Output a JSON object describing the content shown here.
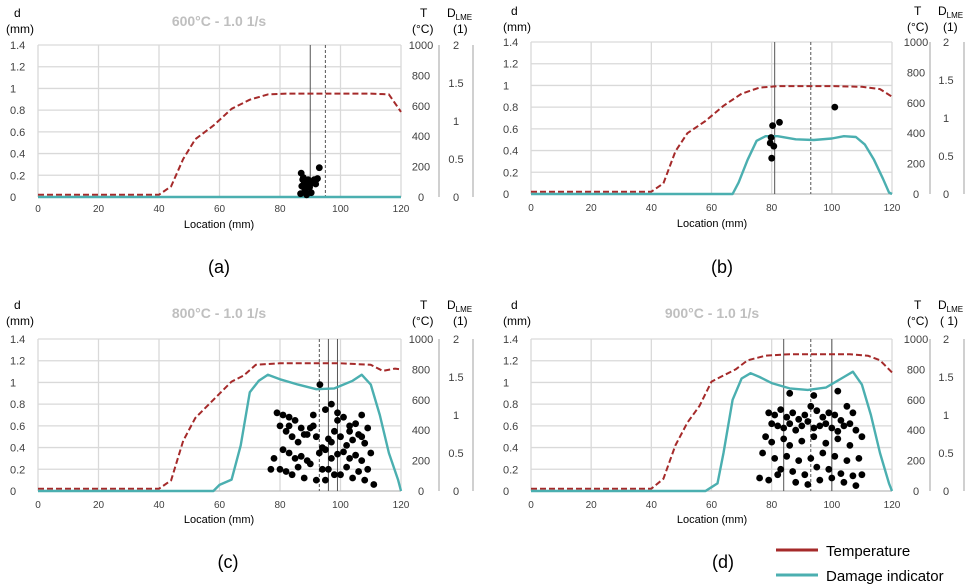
{
  "colors": {
    "temperature": "#A52A2A",
    "damage": "#4BAFB0",
    "grid": "#D9D9D9",
    "axis_text": "#404040",
    "title": "#BFBFBF",
    "points": "#000000"
  },
  "legend": {
    "temperature_label": "Temperature",
    "damage_label": "Damage indicator"
  },
  "chart_data": [
    {
      "type": "line+scatter",
      "panel": "a",
      "caption": "(a)",
      "title": "600°C - 1.0 1/s",
      "xlabel": "Location (mm)",
      "x_ticks": [
        "0",
        "20",
        "40",
        "60",
        "80",
        "100",
        "120"
      ],
      "xlim": [
        0,
        120
      ],
      "y_left": {
        "label_top": "d",
        "label_unit": "(mm)",
        "ticks": [
          "0",
          "0.2",
          "0.4",
          "0.6",
          "0.8",
          "1",
          "1.2",
          "1.4"
        ],
        "lim": [
          0,
          1.4
        ]
      },
      "y_temp": {
        "label_top": "T",
        "label_unit": "(°C)",
        "ticks": [
          "0",
          "200",
          "400",
          "600",
          "800",
          "1000"
        ],
        "lim": [
          0,
          1000
        ]
      },
      "y_dlme": {
        "label_top": "D",
        "label_sub": "LME",
        "label_unit": "(1)",
        "ticks": [
          "0",
          "0.5",
          "1",
          "1.5",
          "2"
        ],
        "lim": [
          0,
          2
        ]
      },
      "vlines": {
        "solid": [
          90
        ],
        "dashed": [
          95
        ]
      },
      "series": [
        {
          "name": "Temperature",
          "axis": "T",
          "style": "dashed",
          "x": [
            0,
            40,
            44,
            48,
            52,
            58,
            64,
            70,
            76,
            82,
            90,
            100,
            110,
            116,
            120
          ],
          "y": [
            15,
            15,
            70,
            250,
            380,
            470,
            580,
            640,
            675,
            680,
            680,
            680,
            680,
            675,
            560
          ]
        },
        {
          "name": "Damage indicator",
          "axis": "D",
          "style": "solid",
          "x": [
            0,
            120
          ],
          "y": [
            0,
            0
          ]
        }
      ],
      "points": {
        "axis": "d",
        "x": [
          86.8,
          87.2,
          87.7,
          88.0,
          88.4,
          88.9,
          89.3,
          89.8,
          90.2,
          90.8,
          91.3,
          91.8,
          92.4,
          87.0,
          87.5,
          88.2,
          88.8,
          89.5,
          90.3,
          91.0,
          92.0,
          93.0
        ],
        "y": [
          0.03,
          0.1,
          0.18,
          0.14,
          0.05,
          0.12,
          0.16,
          0.09,
          0.14,
          0.13,
          0.16,
          0.12,
          0.17,
          0.22,
          0.16,
          0.07,
          0.02,
          0.1,
          0.04,
          0.14,
          0.16,
          0.27
        ]
      }
    },
    {
      "type": "line+scatter",
      "panel": "b",
      "caption": "(b)",
      "title": "",
      "xlabel": "Location (mm)",
      "x_ticks": [
        "0",
        "20",
        "40",
        "60",
        "80",
        "100",
        "120"
      ],
      "xlim": [
        0,
        120
      ],
      "y_left": {
        "label_top": "d",
        "label_unit": "(mm)",
        "ticks": [
          "0",
          "0.2",
          "0.4",
          "0.6",
          "0.8",
          "1",
          "1.2",
          "1.4"
        ],
        "lim": [
          0,
          1.4
        ]
      },
      "y_temp": {
        "label_top": "T",
        "label_unit": "(°C)",
        "ticks": [
          "0",
          "200",
          "400",
          "600",
          "800",
          "1000"
        ],
        "lim": [
          0,
          1000
        ]
      },
      "y_dlme": {
        "label_top": "D",
        "label_sub": "LME",
        "label_unit": "(1)",
        "ticks": [
          "0",
          "0.5",
          "1",
          "1.5",
          "2"
        ],
        "lim": [
          0,
          2
        ]
      },
      "vlines": {
        "solid": [
          81
        ],
        "dashed": [
          93
        ]
      },
      "series": [
        {
          "name": "Temperature",
          "axis": "T",
          "style": "dashed",
          "x": [
            0,
            40,
            44,
            48,
            52,
            58,
            64,
            70,
            76,
            82,
            90,
            100,
            110,
            116,
            120
          ],
          "y": [
            15,
            15,
            70,
            280,
            400,
            480,
            580,
            660,
            700,
            710,
            710,
            710,
            705,
            690,
            640
          ]
        },
        {
          "name": "Damage indicator",
          "axis": "D",
          "style": "solid",
          "x": [
            0,
            67,
            69,
            72,
            75,
            78,
            82,
            88,
            94,
            100,
            104,
            108,
            111,
            114,
            117,
            119,
            120
          ],
          "y": [
            0,
            0,
            0.15,
            0.45,
            0.7,
            0.76,
            0.76,
            0.72,
            0.71,
            0.73,
            0.76,
            0.75,
            0.65,
            0.45,
            0.2,
            0.02,
            0
          ]
        }
      ],
      "points": {
        "axis": "d",
        "x": [
          79.5,
          79.8,
          80.0,
          80.3,
          80.7,
          82.6,
          101.0
        ],
        "y": [
          0.47,
          0.52,
          0.33,
          0.63,
          0.44,
          0.66,
          0.8
        ]
      }
    },
    {
      "type": "line+scatter",
      "panel": "c",
      "caption": "(c)",
      "title": "800°C - 1.0 1/s",
      "xlabel": "Location (mm)",
      "x_ticks": [
        "0",
        "20",
        "40",
        "60",
        "80",
        "100",
        "120"
      ],
      "xlim": [
        0,
        120
      ],
      "y_left": {
        "label_top": "d",
        "label_unit": "(mm)",
        "ticks": [
          "0",
          "0.2",
          "0.4",
          "0.6",
          "0.8",
          "1",
          "1.2",
          "1.4"
        ],
        "lim": [
          0,
          1.4
        ]
      },
      "y_temp": {
        "label_top": "T",
        "label_unit": "(°C)",
        "ticks": [
          "0",
          "200",
          "400",
          "600",
          "800",
          "1000"
        ],
        "lim": [
          0,
          1000
        ]
      },
      "y_dlme": {
        "label_top": "D",
        "label_sub": "LME",
        "label_unit": "(1)",
        "ticks": [
          "0",
          "0.5",
          "1",
          "1.5",
          "2"
        ],
        "lim": [
          0,
          2
        ]
      },
      "vlines": {
        "solid": [
          96,
          99
        ],
        "dashed": [
          93
        ]
      },
      "series": [
        {
          "name": "Temperature",
          "axis": "T",
          "style": "dashed",
          "x": [
            0,
            40,
            44,
            48,
            52,
            58,
            64,
            68,
            72,
            80,
            90,
            100,
            110,
            114,
            118,
            120
          ],
          "y": [
            15,
            15,
            70,
            330,
            480,
            600,
            720,
            760,
            830,
            840,
            840,
            840,
            830,
            790,
            805,
            800
          ]
        },
        {
          "name": "Damage indicator",
          "axis": "D",
          "style": "solid",
          "x": [
            0,
            58,
            60,
            64,
            67,
            70,
            73,
            76,
            80,
            86,
            92,
            98,
            104,
            107,
            110,
            113,
            116,
            119,
            120
          ],
          "y": [
            0,
            0,
            0.08,
            0.15,
            0.6,
            1.3,
            1.45,
            1.53,
            1.47,
            1.4,
            1.34,
            1.35,
            1.45,
            1.53,
            1.4,
            1.0,
            0.5,
            0.15,
            0
          ]
        }
      ],
      "points": {
        "axis": "d",
        "x": [
          93.2,
          79,
          81,
          83,
          85,
          87,
          89,
          91,
          95,
          97,
          99,
          101,
          103,
          105,
          107,
          109,
          80,
          82,
          84,
          86,
          88,
          90,
          92,
          94,
          96,
          98,
          100,
          102,
          104,
          106,
          108,
          81,
          83,
          85,
          87,
          89,
          93,
          95,
          97,
          99,
          101,
          103,
          105,
          107,
          110,
          78,
          80,
          82,
          86,
          90,
          94,
          98,
          102,
          106,
          84,
          88,
          92,
          96,
          100,
          104,
          108,
          111,
          77,
          83,
          91,
          99,
          103,
          107,
          109,
          95,
          97
        ],
        "y": [
          0.98,
          0.72,
          0.7,
          0.68,
          0.65,
          0.58,
          0.52,
          0.6,
          0.75,
          0.8,
          0.72,
          0.68,
          0.6,
          0.62,
          0.7,
          0.58,
          0.6,
          0.55,
          0.5,
          0.45,
          0.52,
          0.58,
          0.5,
          0.4,
          0.48,
          0.55,
          0.5,
          0.42,
          0.47,
          0.52,
          0.44,
          0.38,
          0.35,
          0.3,
          0.32,
          0.28,
          0.35,
          0.38,
          0.3,
          0.34,
          0.36,
          0.3,
          0.33,
          0.28,
          0.35,
          0.3,
          0.2,
          0.18,
          0.22,
          0.25,
          0.2,
          0.15,
          0.22,
          0.18,
          0.15,
          0.12,
          0.1,
          0.2,
          0.15,
          0.12,
          0.1,
          0.06,
          0.2,
          0.6,
          0.7,
          0.65,
          0.55,
          0.5,
          0.2,
          0.1,
          0.45
        ]
      }
    },
    {
      "type": "line+scatter",
      "panel": "d",
      "caption": "(d)",
      "title": "900°C - 1.0 1/s",
      "xlabel": "Location (mm)",
      "x_ticks": [
        "0",
        "20",
        "40",
        "60",
        "80",
        "100",
        "120"
      ],
      "xlim": [
        0,
        120
      ],
      "y_left": {
        "label_top": "d",
        "label_unit": "(mm)",
        "ticks": [
          "0",
          "0.2",
          "0.4",
          "0.6",
          "0.8",
          "1",
          "1.2",
          "1.4"
        ],
        "lim": [
          0,
          1.4
        ]
      },
      "y_temp": {
        "label_top": "T",
        "label_unit": "(°C)",
        "ticks": [
          "0",
          "200",
          "400",
          "600",
          "800",
          "1000"
        ],
        "lim": [
          0,
          1000
        ]
      },
      "y_dlme": {
        "label_top": "D",
        "label_sub": "LME",
        "label_unit": "( 1)",
        "ticks": [
          "0",
          "0.5",
          "1",
          "1.5",
          "2"
        ],
        "lim": [
          0,
          2
        ]
      },
      "vlines": {
        "solid": [
          84,
          100
        ],
        "dashed": [
          93
        ]
      },
      "series": [
        {
          "name": "Temperature",
          "axis": "T",
          "style": "dashed",
          "x": [
            0,
            40,
            44,
            48,
            52,
            56,
            60,
            64,
            68,
            72,
            78,
            86,
            96,
            106,
            112,
            116,
            120
          ],
          "y": [
            15,
            15,
            80,
            300,
            450,
            560,
            720,
            760,
            800,
            860,
            890,
            900,
            900,
            900,
            890,
            860,
            780
          ]
        },
        {
          "name": "Damage indicator",
          "axis": "D",
          "style": "solid",
          "x": [
            0,
            58,
            60,
            62,
            64,
            67,
            70,
            73,
            76,
            80,
            86,
            92,
            98,
            104,
            107,
            110,
            113,
            116,
            119,
            120
          ],
          "y": [
            0,
            0,
            0.05,
            0.1,
            0.5,
            1.2,
            1.48,
            1.55,
            1.5,
            1.42,
            1.35,
            1.33,
            1.36,
            1.5,
            1.57,
            1.4,
            1.0,
            0.5,
            0.1,
            0
          ]
        }
      ],
      "points": {
        "axis": "d",
        "x": [
          79,
          81,
          83,
          85,
          87,
          89,
          91,
          93,
          95,
          97,
          99,
          101,
          103,
          105,
          107,
          80,
          82,
          84,
          86,
          88,
          90,
          92,
          94,
          96,
          98,
          100,
          102,
          104,
          106,
          108,
          78,
          80,
          84,
          86,
          90,
          94,
          98,
          102,
          106,
          110,
          77,
          81,
          85,
          89,
          93,
          97,
          101,
          105,
          109,
          83,
          87,
          91,
          95,
          99,
          103,
          107,
          76,
          79,
          82,
          88,
          92,
          96,
          100,
          104,
          108,
          110,
          86,
          94,
          102
        ],
        "y": [
          0.72,
          0.7,
          0.75,
          0.68,
          0.72,
          0.66,
          0.7,
          0.78,
          0.74,
          0.68,
          0.72,
          0.7,
          0.65,
          0.78,
          0.72,
          0.62,
          0.6,
          0.58,
          0.62,
          0.56,
          0.6,
          0.64,
          0.58,
          0.6,
          0.62,
          0.58,
          0.55,
          0.6,
          0.62,
          0.56,
          0.5,
          0.45,
          0.48,
          0.42,
          0.46,
          0.5,
          0.44,
          0.48,
          0.42,
          0.5,
          0.35,
          0.3,
          0.32,
          0.28,
          0.3,
          0.35,
          0.32,
          0.28,
          0.3,
          0.2,
          0.18,
          0.15,
          0.22,
          0.2,
          0.16,
          0.14,
          0.12,
          0.1,
          0.15,
          0.08,
          0.06,
          0.1,
          0.12,
          0.08,
          0.05,
          0.15,
          0.9,
          0.88,
          0.92
        ]
      }
    }
  ]
}
